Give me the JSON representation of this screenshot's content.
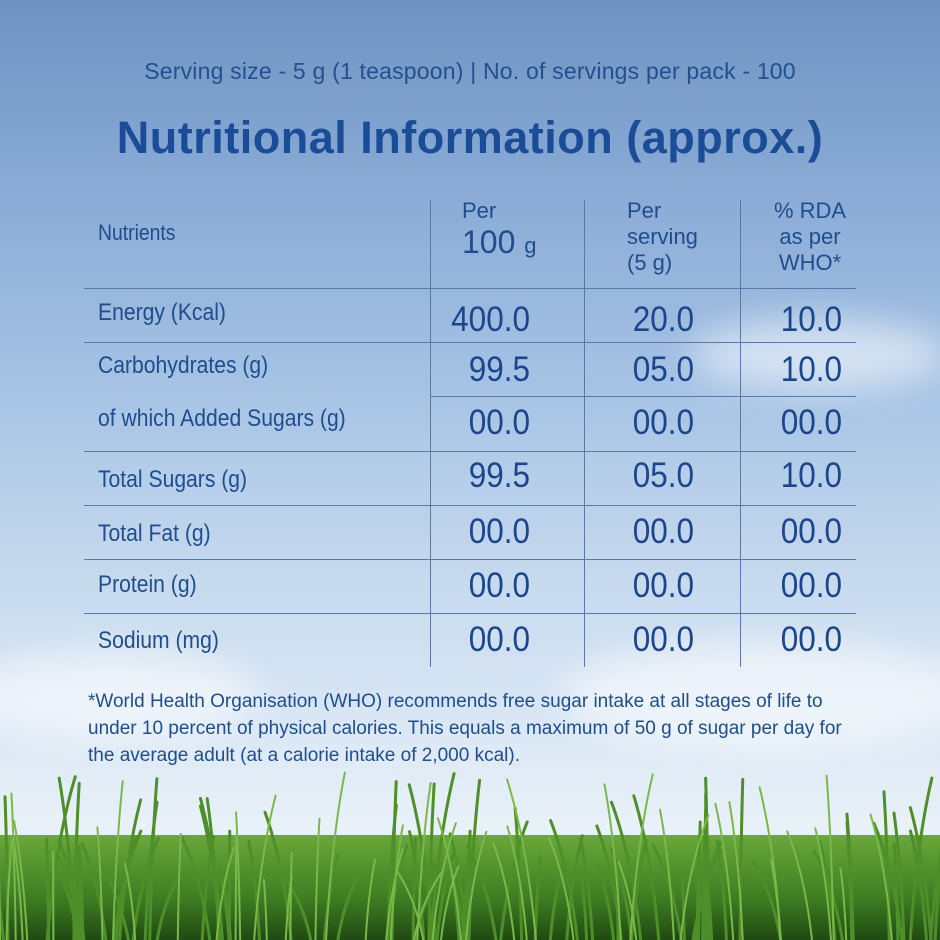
{
  "header": {
    "serving_line": "Serving size - 5 g (1 teaspoon) | No. of servings per pack - 100",
    "title": "Nutritional Information (approx.)"
  },
  "table": {
    "columns": {
      "nutrients": "Nutrients",
      "per100_line1": "Per",
      "per100_line2": "100",
      "per100_unit": "g",
      "serving_line1": "Per",
      "serving_line2": "serving",
      "serving_line3": "(5 g)",
      "rda_line1": "% RDA",
      "rda_line2": "as per",
      "rda_line3": "WHO*"
    },
    "rows": [
      {
        "label": "Energy (Kcal)",
        "per100": "400.0",
        "serving": "20.0",
        "rda": "10.0"
      },
      {
        "label": "Carbohydrates (g)",
        "per100": "99.5",
        "serving": "05.0",
        "rda": "10.0"
      },
      {
        "label": "of which Added Sugars (g)",
        "per100": "00.0",
        "serving": "00.0",
        "rda": "00.0"
      },
      {
        "label": "Total Sugars (g)",
        "per100": "99.5",
        "serving": "05.0",
        "rda": "10.0"
      },
      {
        "label": "Total Fat (g)",
        "per100": "00.0",
        "serving": "00.0",
        "rda": "00.0"
      },
      {
        "label": "Protein (g)",
        "per100": "00.0",
        "serving": "00.0",
        "rda": "00.0"
      },
      {
        "label": "Sodium (mg)",
        "per100": "00.0",
        "serving": "00.0",
        "rda": "00.0"
      }
    ]
  },
  "footnote": {
    "line1": "*World Health Organisation (WHO) recommends free sugar intake at all stages of life to",
    "line2": "under 10 percent of physical calories. This equals a maximum of 50 g of sugar per day for",
    "line3": "the average adult (at a calorie intake of 2,000 kcal)."
  },
  "colors": {
    "text": "#1d4b8f",
    "title": "#1a4c98",
    "rule": "#5a79ab",
    "sky_top": "#6f93c2",
    "grass": "#3f7d22"
  }
}
